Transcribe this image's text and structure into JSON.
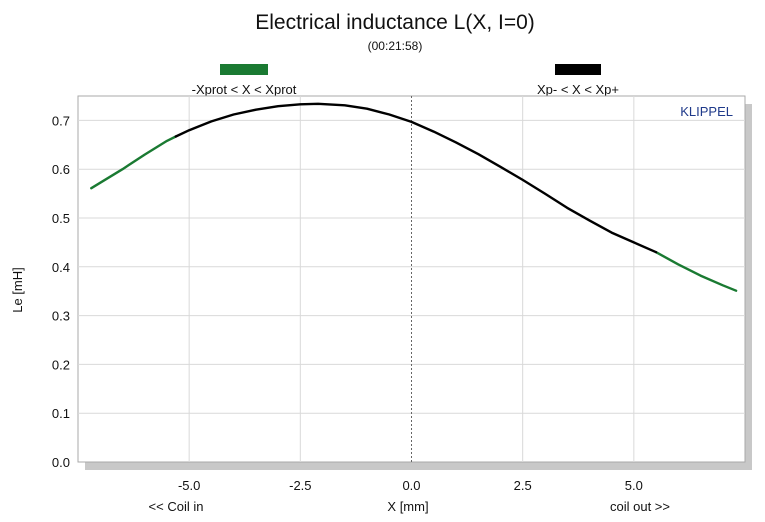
{
  "chart_data": {
    "type": "line",
    "title": "Electrical inductance L(X, I=0)",
    "subtitle": "(00:21:58)",
    "brand": "KLIPPEL",
    "xlabel": "X [mm]",
    "ylabel": "Le [mH]",
    "x_left_note": "<< Coil in",
    "x_right_note": "coil out >>",
    "xlim": [
      -7.5,
      7.5
    ],
    "ylim": [
      0.0,
      0.75
    ],
    "xticks": [
      -5.0,
      -2.5,
      0.0,
      2.5,
      5.0
    ],
    "xtick_labels": [
      "-5.0",
      "-2.5",
      "0.0",
      "2.5",
      "5.0"
    ],
    "yticks": [
      0.0,
      0.1,
      0.2,
      0.3,
      0.4,
      0.5,
      0.6,
      0.7
    ],
    "ytick_labels": [
      "0.0",
      "0.1",
      "0.2",
      "0.3",
      "0.4",
      "0.5",
      "0.6",
      "0.7"
    ],
    "grid": true,
    "legend": [
      {
        "label": "-Xprot < X < Xprot",
        "color": "#1a7a32"
      },
      {
        "label": "Xp- < X < Xp+",
        "color": "#000000"
      }
    ],
    "series": [
      {
        "name": "-Xprot < X < Xprot",
        "color": "#1a7a32",
        "segments": [
          {
            "x": [
              -7.2,
              -6.5,
              -6.0,
              -5.5,
              -5.3
            ],
            "y": [
              0.561,
              0.6,
              0.63,
              0.658,
              0.667
            ]
          },
          {
            "x": [
              5.5,
              6.0,
              6.5,
              7.0,
              7.3
            ],
            "y": [
              0.43,
              0.405,
              0.382,
              0.362,
              0.351
            ]
          }
        ]
      },
      {
        "name": "Xp- < X < Xp+",
        "color": "#000000",
        "segments": [
          {
            "x": [
              -5.3,
              -5.0,
              -4.5,
              -4.0,
              -3.5,
              -3.0,
              -2.5,
              -2.1,
              -1.5,
              -1.0,
              -0.5,
              0.0,
              0.5,
              1.0,
              1.5,
              2.0,
              2.5,
              3.0,
              3.5,
              4.0,
              4.5,
              5.0,
              5.5
            ],
            "y": [
              0.667,
              0.68,
              0.698,
              0.712,
              0.722,
              0.729,
              0.733,
              0.734,
              0.731,
              0.724,
              0.712,
              0.697,
              0.677,
              0.655,
              0.631,
              0.605,
              0.578,
              0.55,
              0.521,
              0.495,
              0.47,
              0.45,
              0.43
            ]
          }
        ]
      }
    ],
    "annotations": [
      "vertical dotted line at x = 0.0"
    ]
  }
}
